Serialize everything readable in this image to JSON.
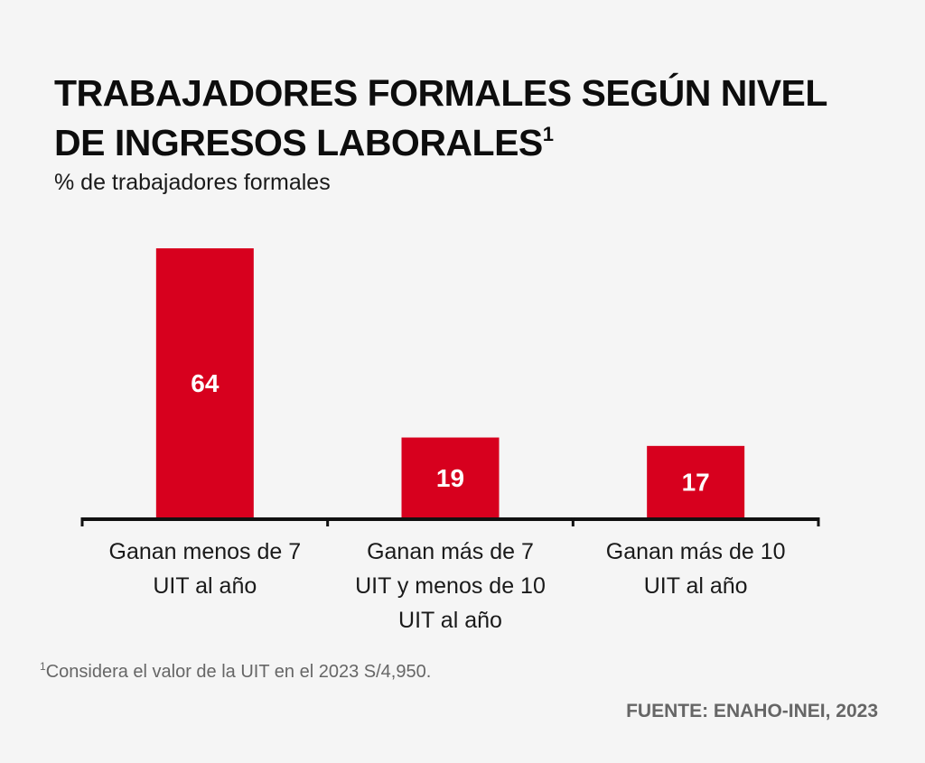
{
  "header": {
    "title": "TRABAJADORES FORMALES SEGÚN NIVEL DE INGRESOS LABORALES",
    "title_sup": "1",
    "subtitle": "% de trabajadores formales"
  },
  "footer": {
    "footnote_mark": "1",
    "footnote": "Considera el valor de la UIT en el 2023 S/4,950.",
    "source": "FUENTE: ENAHO-INEI, 2023"
  },
  "colors": {
    "bar": "#d7001e",
    "axis": "#111111",
    "label": "#ffffff"
  },
  "chart_data": {
    "type": "bar",
    "title": "TRABAJADORES FORMALES SEGÚN NIVEL DE INGRESOS LABORALES",
    "subtitle": "% de trabajadores formales",
    "categories": [
      "Ganan menos de 7 UIT al año",
      "Ganan más de 7 UIT y menos de 10 UIT al año",
      "Ganan más de 10 UIT al año"
    ],
    "category_lines": [
      [
        "Ganan menos de 7",
        "UIT al año"
      ],
      [
        "Ganan más de 7",
        "UIT y menos de 10",
        "UIT al año"
      ],
      [
        "Ganan más de 10",
        "UIT al año"
      ]
    ],
    "values": [
      64,
      19,
      17
    ],
    "data_labels": [
      "64",
      "19",
      "17"
    ],
    "xlabel": "",
    "ylabel": "% de trabajadores formales",
    "ylim": [
      0,
      64
    ],
    "grid": false,
    "legend": "none"
  }
}
